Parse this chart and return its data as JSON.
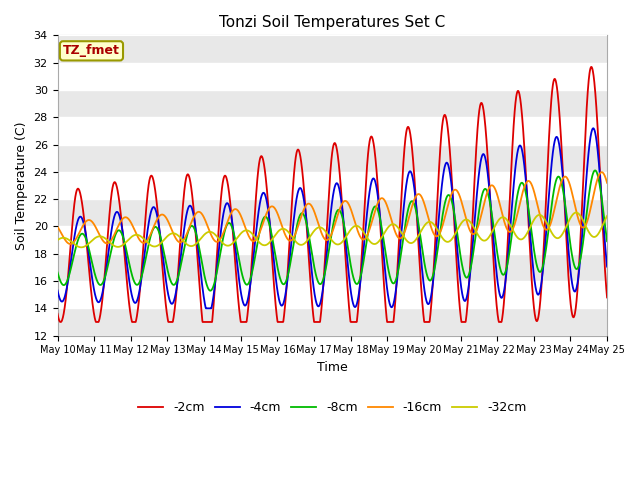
{
  "title": "Tonzi Soil Temperatures Set C",
  "xlabel": "Time",
  "ylabel": "Soil Temperature (C)",
  "ylim": [
    12,
    34
  ],
  "yticks": [
    12,
    14,
    16,
    18,
    20,
    22,
    24,
    26,
    28,
    30,
    32,
    34
  ],
  "legend_labels": [
    "-2cm",
    "-4cm",
    "-8cm",
    "-16cm",
    "-32cm"
  ],
  "legend_colors": [
    "#dd0000",
    "#0000dd",
    "#00bb00",
    "#ff8800",
    "#cccc00"
  ],
  "plot_bg_color": "#ffffff",
  "annotation_text": "TZ_fmet",
  "annotation_color": "#aa0000",
  "annotation_bg": "#ffffcc",
  "annotation_border": "#999900",
  "start_day": 10,
  "n_days": 15
}
